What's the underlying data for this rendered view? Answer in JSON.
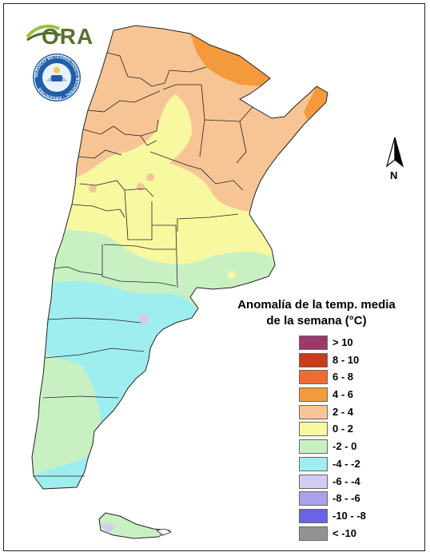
{
  "logo": {
    "text": "ORA"
  },
  "seal": {
    "text": "SERVICIO METEOROLÓGICO NACIONAL · ARGENTINA"
  },
  "north_arrow": {
    "label": "N"
  },
  "legend": {
    "title_line1": "Anomalía de la temp. media",
    "title_line2": "de la semana (°C)",
    "items": [
      {
        "label": "> 10",
        "color": "#9b3a6a"
      },
      {
        "label": "8 - 10",
        "color": "#c83c1a"
      },
      {
        "label": "6 - 8",
        "color": "#f06a34"
      },
      {
        "label": "4 - 6",
        "color": "#f59a3c"
      },
      {
        "label": "2 - 4",
        "color": "#f7c595"
      },
      {
        "label": "0 - 2",
        "color": "#f8f8a0"
      },
      {
        "label": "-2 - 0",
        "color": "#c9f0c3"
      },
      {
        "label": "-4 - -2",
        "color": "#9eeef0"
      },
      {
        "label": "-6 - -4",
        "color": "#d1cdf0"
      },
      {
        "label": "-8 - -6",
        "color": "#a9a3ee"
      },
      {
        "label": "-10 - -8",
        "color": "#6a64e4"
      },
      {
        "label": "< -10",
        "color": "#939393"
      }
    ]
  }
}
